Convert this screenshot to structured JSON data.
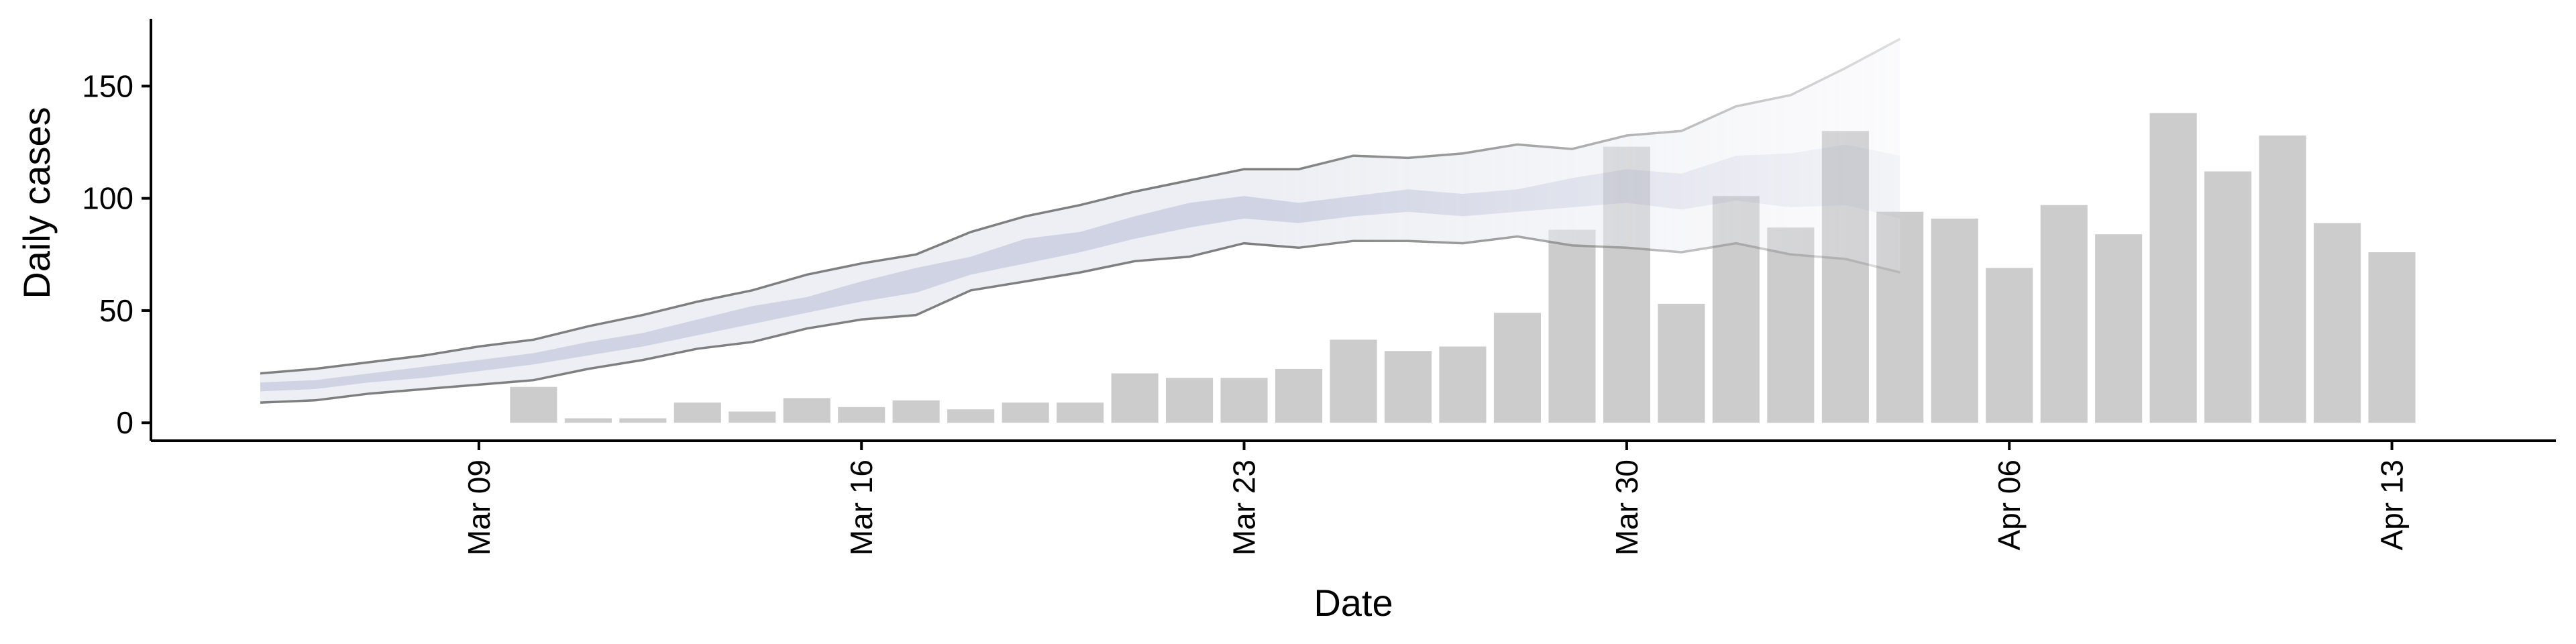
{
  "chart_data": {
    "type": "bar",
    "xlabel": "Date",
    "ylabel": "Daily cases",
    "ylim": [
      -8,
      180
    ],
    "xlim": [
      "2020-03-03",
      "2020-04-16"
    ],
    "yticks": [
      0,
      50,
      100,
      150
    ],
    "xticks": [
      {
        "date": "2020-03-09",
        "label": "Mar 09"
      },
      {
        "date": "2020-03-16",
        "label": "Mar 16"
      },
      {
        "date": "2020-03-23",
        "label": "Mar 23"
      },
      {
        "date": "2020-03-30",
        "label": "Mar 30"
      },
      {
        "date": "2020-04-06",
        "label": "Apr 06"
      },
      {
        "date": "2020-04-13",
        "label": "Apr 13"
      }
    ],
    "grid": false,
    "colors": {
      "bars": "#cccccc",
      "band_outer": "#e9eaf1",
      "band_inner": "#c4c8dc",
      "bound_line": "#7f7f7f"
    },
    "series": [
      {
        "type": "bar",
        "x": [
          "2020-03-10",
          "2020-03-11",
          "2020-03-12",
          "2020-03-13",
          "2020-03-14",
          "2020-03-15",
          "2020-03-16",
          "2020-03-17",
          "2020-03-18",
          "2020-03-19",
          "2020-03-20",
          "2020-03-21",
          "2020-03-22",
          "2020-03-23",
          "2020-03-24",
          "2020-03-25",
          "2020-03-26",
          "2020-03-27",
          "2020-03-28",
          "2020-03-29",
          "2020-03-30",
          "2020-03-31",
          "2020-04-01",
          "2020-04-02",
          "2020-04-03",
          "2020-04-04",
          "2020-04-05",
          "2020-04-06",
          "2020-04-07",
          "2020-04-08",
          "2020-04-09",
          "2020-04-10",
          "2020-04-11",
          "2020-04-12",
          "2020-04-13"
        ],
        "values": [
          16,
          2,
          2,
          9,
          5,
          11,
          7,
          10,
          6,
          9,
          9,
          22,
          20,
          20,
          24,
          37,
          32,
          34,
          49,
          86,
          123,
          53,
          101,
          87,
          130,
          94,
          91,
          69,
          97,
          84,
          138,
          112,
          128,
          89,
          76
        ]
      },
      {
        "type": "band",
        "x": [
          "2020-03-05",
          "2020-03-06",
          "2020-03-07",
          "2020-03-08",
          "2020-03-09",
          "2020-03-10",
          "2020-03-11",
          "2020-03-12",
          "2020-03-13",
          "2020-03-14",
          "2020-03-15",
          "2020-03-16",
          "2020-03-17",
          "2020-03-18",
          "2020-03-19",
          "2020-03-20",
          "2020-03-21",
          "2020-03-22",
          "2020-03-23",
          "2020-03-24",
          "2020-03-25",
          "2020-03-26",
          "2020-03-27",
          "2020-03-28",
          "2020-03-29",
          "2020-03-30",
          "2020-03-31",
          "2020-04-01",
          "2020-04-02",
          "2020-04-03",
          "2020-04-04"
        ],
        "lower": [
          9,
          10,
          13,
          15,
          17,
          19,
          24,
          28,
          33,
          36,
          42,
          46,
          48,
          59,
          63,
          67,
          72,
          74,
          80,
          78,
          81,
          81,
          80,
          83,
          79,
          78,
          76,
          80,
          75,
          73,
          67
        ],
        "upper": [
          22,
          24,
          27,
          30,
          34,
          37,
          43,
          48,
          54,
          59,
          66,
          71,
          75,
          85,
          92,
          97,
          103,
          108,
          113,
          113,
          119,
          118,
          120,
          124,
          122,
          128,
          130,
          141,
          146,
          158,
          171
        ],
        "inner_lower": [
          14,
          15,
          18,
          20,
          23,
          26,
          30,
          34,
          39,
          44,
          49,
          54,
          58,
          66,
          71,
          76,
          82,
          87,
          91,
          89,
          92,
          94,
          92,
          94,
          96,
          98,
          95,
          99,
          96,
          97,
          91
        ],
        "inner_upper": [
          18,
          19,
          22,
          25,
          28,
          31,
          36,
          40,
          46,
          52,
          56,
          63,
          69,
          74,
          82,
          85,
          92,
          98,
          101,
          98,
          101,
          104,
          102,
          104,
          109,
          113,
          111,
          119,
          120,
          124,
          119
        ]
      }
    ]
  }
}
